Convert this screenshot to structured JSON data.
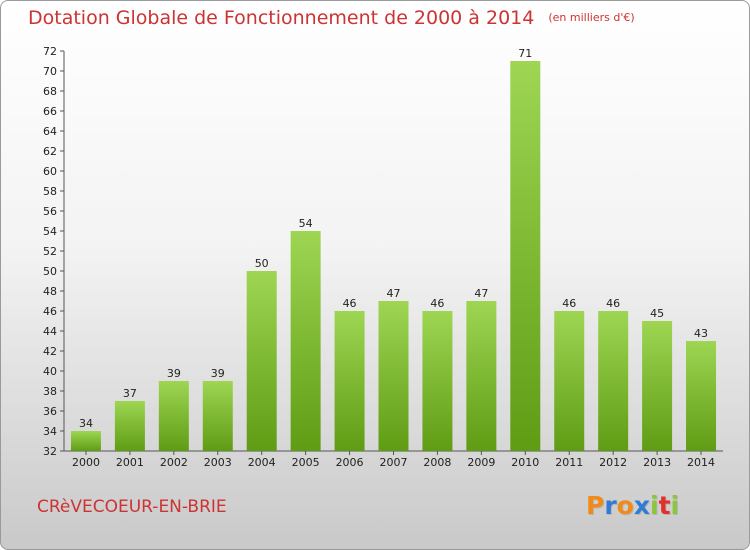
{
  "header": {
    "title": "Dotation Globale de Fonctionnement de 2000 à 2014",
    "unit": "(en milliers d'€)"
  },
  "footer": {
    "commune": "CRèVECOEUR-EN-BRIE",
    "logo": [
      "P",
      "r",
      "o",
      "x",
      "i",
      "t",
      "i"
    ]
  },
  "colors": {
    "title": "#cc3333",
    "bar_top": "#9ed653",
    "bar_bottom": "#5f9c14",
    "logo": [
      "#f08a1a",
      "#2f7bd6",
      "#f08a1a",
      "#2f7bd6",
      "#8cc63e",
      "#e0312a",
      "#8cc63e"
    ]
  },
  "chart_data": {
    "type": "bar",
    "title": "Dotation Globale de Fonctionnement de 2000 à 2014",
    "categories": [
      "2000",
      "2001",
      "2002",
      "2003",
      "2004",
      "2005",
      "2006",
      "2007",
      "2008",
      "2009",
      "2010",
      "2011",
      "2012",
      "2013",
      "2014"
    ],
    "values": [
      34,
      37,
      39,
      39,
      50,
      54,
      46,
      47,
      46,
      47,
      71,
      46,
      46,
      45,
      43
    ],
    "ylim": [
      32,
      72
    ],
    "yticks": [
      32,
      34,
      36,
      38,
      40,
      42,
      44,
      46,
      48,
      50,
      52,
      54,
      56,
      58,
      60,
      62,
      64,
      66,
      68,
      70,
      72
    ],
    "grid": false,
    "legend": "none"
  }
}
